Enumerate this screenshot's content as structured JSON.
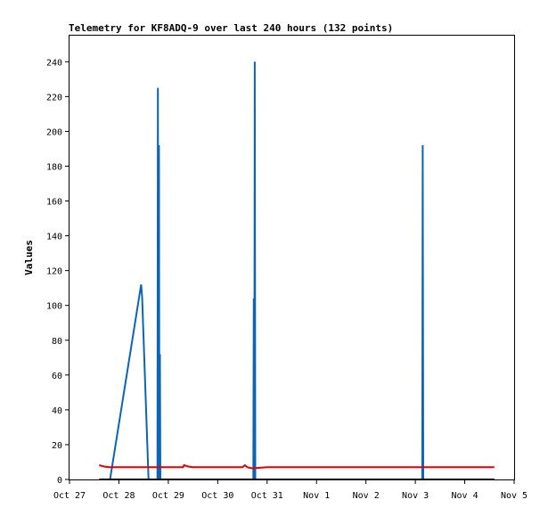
{
  "colors": {
    "background": "#ffffff",
    "axis": "#000000",
    "series_blue": "#0c64b4",
    "series_red": "#e00000",
    "series_black": "#000000"
  },
  "chart_data": {
    "type": "line",
    "title": "Telemetry for KF8ADQ-9 over last 240 hours (132 points)",
    "xlabel": "",
    "ylabel": "Values",
    "x_ticks": [
      "Oct 27",
      "Oct 28",
      "Oct 29",
      "Oct 30",
      "Oct 31",
      "Nov 1",
      "Nov 2",
      "Nov 3",
      "Nov 4",
      "Nov 5"
    ],
    "y_ticks": [
      0,
      20,
      40,
      60,
      80,
      100,
      120,
      140,
      160,
      180,
      200,
      220,
      240
    ],
    "xlim": [
      0,
      9
    ],
    "ylim": [
      0,
      255
    ],
    "grid": false,
    "series": [
      {
        "color": "#0c64b4",
        "x": [
          0.82,
          1.45,
          1.47,
          1.6,
          1.78,
          1.79,
          1.8,
          1.81,
          1.82,
          1.83,
          1.84,
          3.72,
          3.73,
          3.74,
          3.75,
          3.76,
          7.14,
          7.15,
          7.16
        ],
        "values": [
          0,
          112,
          105,
          0,
          0,
          225,
          0,
          192,
          0,
          72,
          0,
          0,
          104,
          0,
          240,
          0,
          0,
          192,
          0
        ]
      },
      {
        "color": "#e00000",
        "x": [
          0.6,
          0.7,
          0.8,
          1.0,
          1.5,
          2.0,
          2.3,
          2.32,
          2.4,
          2.5,
          3.0,
          3.5,
          3.55,
          3.6,
          3.7,
          4.0,
          5.0,
          6.0,
          7.0,
          8.0,
          8.6
        ],
        "values": [
          8.2,
          7.4,
          7.0,
          7.0,
          7.0,
          7.0,
          7.0,
          8.2,
          7.4,
          7.0,
          7.0,
          7.0,
          8.2,
          7.0,
          6.4,
          7.0,
          7.0,
          7.0,
          7.0,
          7.0,
          7.0
        ]
      },
      {
        "color": "#000000",
        "x": [
          0.6,
          8.6
        ],
        "values": [
          0,
          0
        ]
      }
    ]
  }
}
